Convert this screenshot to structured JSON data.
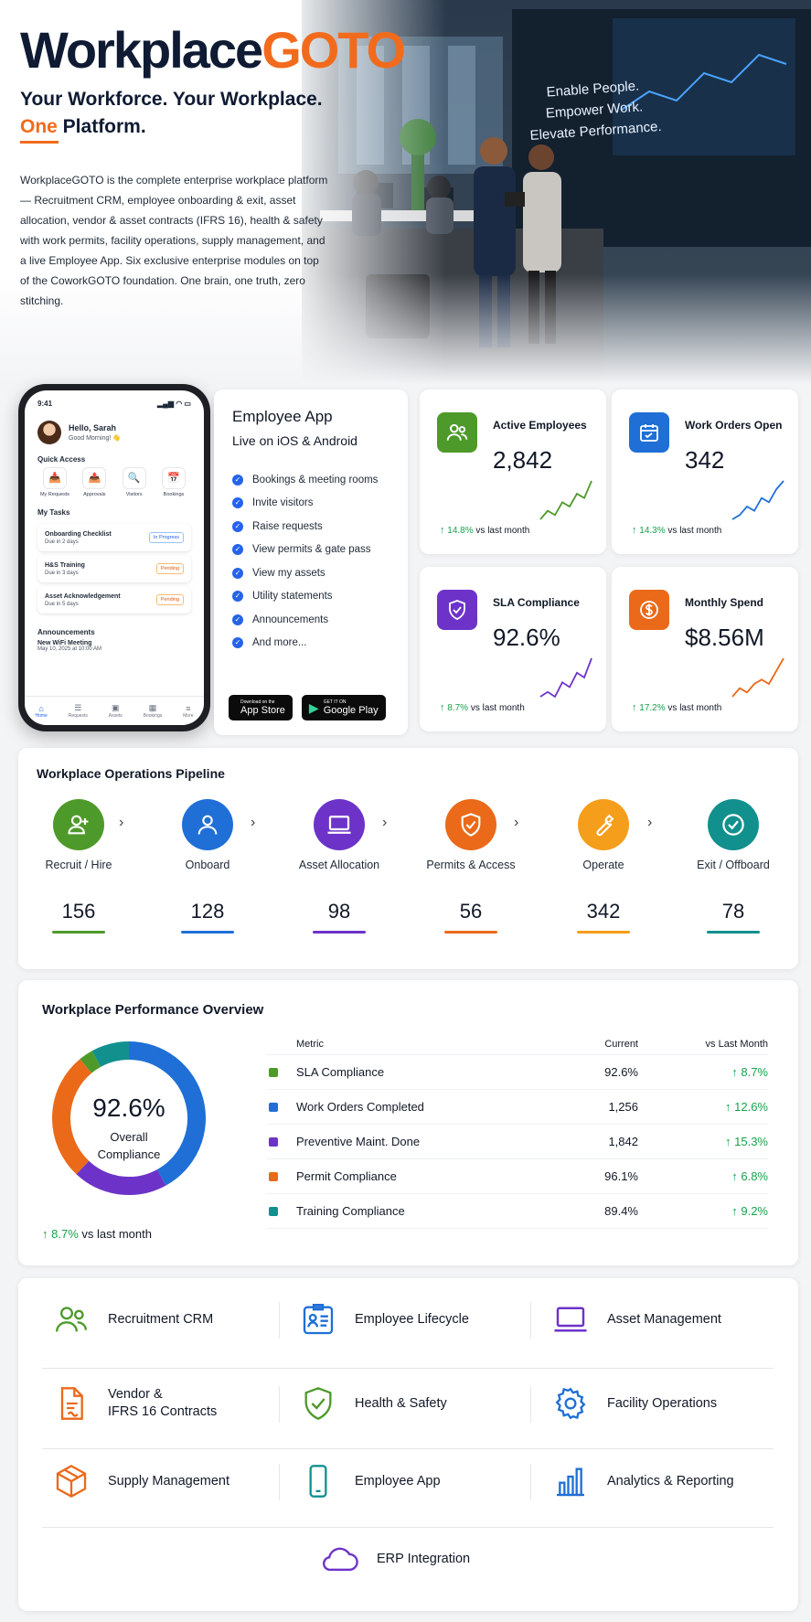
{
  "hero": {
    "brand_a": "Workplace",
    "brand_b": "GOTO",
    "tagline_1": "Your Workforce. Your Workplace.",
    "tagline_2a": "One",
    "tagline_2b": " Platform.",
    "intro": "WorkplaceGOTO is the complete enterprise workplace platform — Recruitment CRM, employee onboarding & exit, asset allocation, vendor & asset contracts (IFRS 16), health & safety with work permits, facility operations, supply management, and a live Employee App. Six exclusive enterprise modules on top of the CoworkGOTO foundation. One brain, one truth, zero stitching.",
    "wall_1": "Enable People.",
    "wall_2": "Empower Work.",
    "wall_3": "Elevate Performance."
  },
  "phone": {
    "time": "9:41",
    "signal": "▂▄▆ ◠ ▭",
    "greeting": "Hello, Sarah",
    "greeting_sub": "Good Morning! 👋",
    "quick_access_title": "Quick Access",
    "quick_access": [
      {
        "icon": "📥",
        "label": "My Requests"
      },
      {
        "icon": "📤",
        "label": "Approvals"
      },
      {
        "icon": "🔍",
        "label": "Visitors"
      },
      {
        "icon": "📅",
        "label": "Bookings"
      }
    ],
    "tasks_title": "My Tasks",
    "tasks": [
      {
        "title": "Onboarding Checklist",
        "due": "Due in 2 days",
        "status": "In Progress"
      },
      {
        "title": "H&S Training",
        "due": "Due in 3 days",
        "status": "Pending"
      },
      {
        "title": "Asset Acknowledgement",
        "due": "Due in 5 days",
        "status": "Pending"
      }
    ],
    "announcements_title": "Announcements",
    "announcement_title": "New WiFi Meeting",
    "announcement_date": "May 10, 2025 at 10:00 AM",
    "nav": [
      {
        "icon": "⌂",
        "label": "Home"
      },
      {
        "icon": "☰",
        "label": "Requests"
      },
      {
        "icon": "▣",
        "label": "Assets"
      },
      {
        "icon": "▦",
        "label": "Bookings"
      },
      {
        "icon": "≡",
        "label": "More"
      }
    ]
  },
  "employee_app": {
    "title": "Employee App",
    "subtitle": "Live on iOS & Android",
    "features": [
      "Bookings & meeting rooms",
      "Invite visitors",
      "Raise requests",
      "View permits & gate pass",
      "View my assets",
      "Utility statements",
      "Announcements",
      "And more..."
    ],
    "appstore_small": "Download on the",
    "appstore_big": "App Store",
    "googleplay_small": "GET IT ON",
    "googleplay_big": "Google Play"
  },
  "kpis": [
    {
      "label": "Active Employees",
      "value": "2,842",
      "delta": "14.8%",
      "delta_suffix": "vs last month",
      "color": "#4d9a2a",
      "icon": "people-icon",
      "spark": [
        2,
        4,
        3,
        6,
        5,
        8,
        7,
        11
      ]
    },
    {
      "label": "Work Orders Open",
      "value": "342",
      "delta": "14.3%",
      "delta_suffix": "vs last month",
      "color": "#1f6fd6",
      "icon": "calendar-icon",
      "spark": [
        2,
        3,
        5,
        4,
        7,
        6,
        9,
        11
      ]
    },
    {
      "label": "SLA Compliance",
      "value": "92.6%",
      "delta": "8.7%",
      "delta_suffix": "vs last month",
      "color": "#6d33c9",
      "icon": "shield-check-icon",
      "spark": [
        2,
        3,
        2,
        5,
        4,
        7,
        6,
        10
      ]
    },
    {
      "label": "Monthly Spend",
      "value": "$8.56M",
      "delta": "17.2%",
      "delta_suffix": "vs last month",
      "color": "#ea6a1a",
      "icon": "dollar-icon",
      "spark": [
        2,
        4,
        3,
        5,
        6,
        5,
        8,
        11
      ]
    }
  ],
  "pipeline": {
    "title": "Workplace Operations Pipeline",
    "stages": [
      {
        "label": "Recruit / Hire",
        "value": "156",
        "color": "#4d9a2a",
        "icon": "user-add-icon"
      },
      {
        "label": "Onboard",
        "value": "128",
        "color": "#1f6fd6",
        "icon": "user-icon"
      },
      {
        "label": "Asset Allocation",
        "value": "98",
        "color": "#6d33c9",
        "icon": "laptop-icon"
      },
      {
        "label": "Permits & Access",
        "value": "56",
        "color": "#ea6a1a",
        "icon": "shield-check-icon"
      },
      {
        "label": "Operate",
        "value": "342",
        "color": "#f59e1b",
        "icon": "wrench-icon"
      },
      {
        "label": "Exit / Offboard",
        "value": "78",
        "color": "#12908e",
        "icon": "check-circle-icon"
      }
    ],
    "arrow": "›"
  },
  "performance": {
    "title": "Workplace Performance Overview",
    "center_value": "92.6%",
    "center_label_1": "Overall",
    "center_label_2": "Compliance",
    "delta": "8.7%",
    "delta_suffix": "vs last month",
    "headers": {
      "metric": "Metric",
      "current": "Current",
      "vs": "vs Last Month"
    },
    "rows": [
      {
        "metric": "SLA Compliance",
        "current": "92.6%",
        "delta": "8.7%",
        "color": "#4d9a2a"
      },
      {
        "metric": "Work Orders Completed",
        "current": "1,256",
        "delta": "12.6%",
        "color": "#1f6fd6"
      },
      {
        "metric": "Preventive Maint. Done",
        "current": "1,842",
        "delta": "15.3%",
        "color": "#6d33c9"
      },
      {
        "metric": "Permit Compliance",
        "current": "96.1%",
        "delta": "6.8%",
        "color": "#ea6a1a"
      },
      {
        "metric": "Training Compliance",
        "current": "89.4%",
        "delta": "9.2%",
        "color": "#12908e"
      }
    ],
    "donut_segments": [
      {
        "color": "#1f6fd6",
        "value": 42
      },
      {
        "color": "#6d33c9",
        "value": 20
      },
      {
        "color": "#ea6a1a",
        "value": 27
      },
      {
        "color": "#4d9a2a",
        "value": 3
      },
      {
        "color": "#12908e",
        "value": 8
      }
    ]
  },
  "modules": [
    {
      "label": "Recruitment CRM",
      "icon": "people-icon",
      "color": "#4d9a2a"
    },
    {
      "label": "Employee Lifecycle",
      "icon": "id-card-icon",
      "color": "#1f6fd6"
    },
    {
      "label": "Asset Management",
      "icon": "laptop-icon",
      "color": "#6d33c9"
    },
    {
      "label": "Vendor &\nIFRS 16 Contracts",
      "icon": "document-icon",
      "color": "#ea6a1a"
    },
    {
      "label": "Health & Safety",
      "icon": "shield-check-icon",
      "color": "#4d9a2a"
    },
    {
      "label": "Facility Operations",
      "icon": "gear-icon",
      "color": "#1f6fd6"
    },
    {
      "label": "Supply Management",
      "icon": "box-icon",
      "color": "#ea6a1a"
    },
    {
      "label": "Employee App",
      "icon": "phone-icon",
      "color": "#12908e"
    },
    {
      "label": "Analytics & Reporting",
      "icon": "bar-chart-icon",
      "color": "#1f6fd6"
    },
    {
      "label": "ERP Integration",
      "icon": "cloud-icon",
      "color": "#6d33c9"
    }
  ]
}
